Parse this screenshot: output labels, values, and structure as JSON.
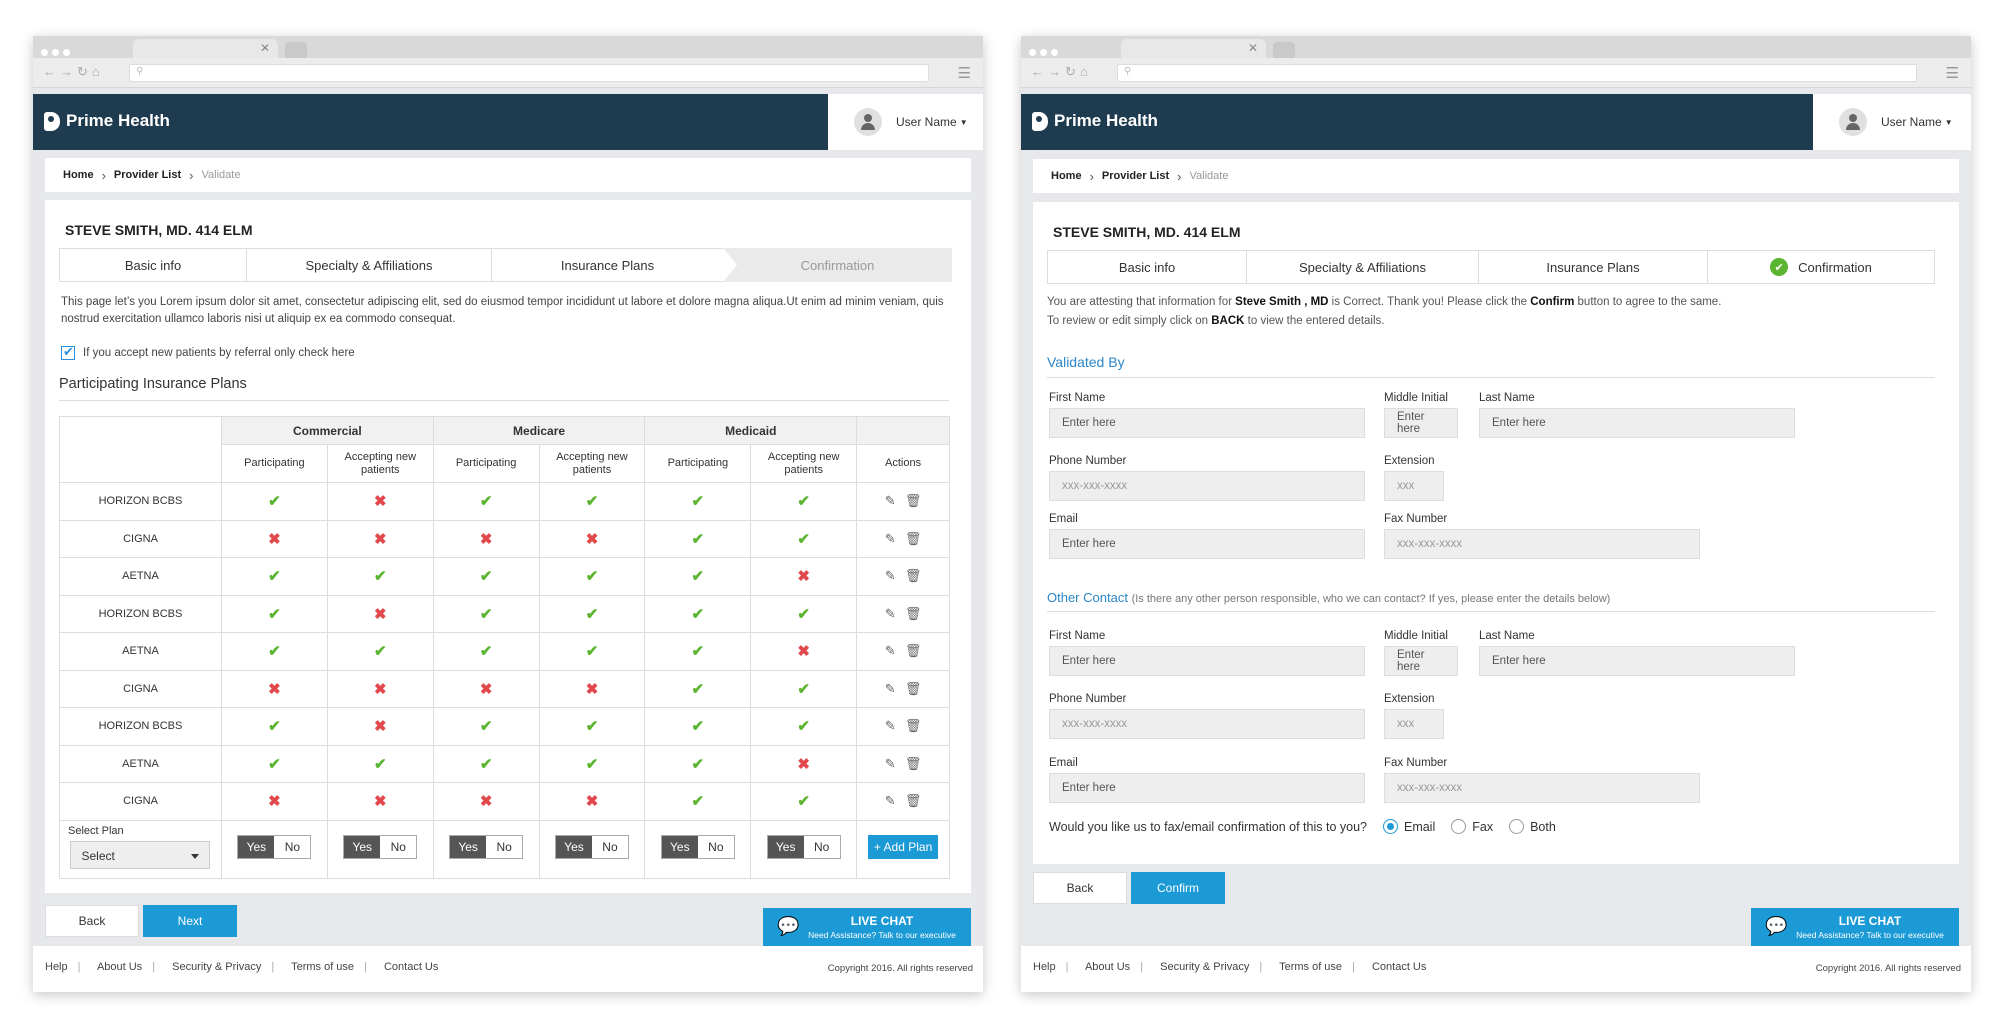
{
  "brand": "Prime Health",
  "user": "User Name",
  "breadcrumb": {
    "home": "Home",
    "provider": "Provider List",
    "current": "Validate"
  },
  "provider": "STEVE SMITH, MD. 414 ELM",
  "steps": [
    "Basic info",
    "Specialty & Affiliations",
    "Insurance Plans",
    "Confirmation"
  ],
  "screen1": {
    "description": "This page let’s you Lorem ipsum dolor sit amet, consectetur adipiscing elit, sed do eiusmod tempor incididunt ut labore et dolore magna aliqua.Ut enim ad minim veniam, quis nostrud exercitation ullamco laboris nisi ut aliquip ex ea commodo consequat.",
    "checkbox_label": "If you accept new patients by referral only check here",
    "section": "Participating Insurance Plans",
    "groups": [
      "Commercial",
      "Medicare",
      "Medicaid"
    ],
    "sub_participating": "Participating",
    "sub_accepting": "Accepting new patients",
    "actions": "Actions",
    "rows": [
      {
        "name": "HORIZON BCBS",
        "v": [
          1,
          0,
          1,
          1,
          1,
          1
        ]
      },
      {
        "name": "CIGNA",
        "v": [
          0,
          0,
          0,
          0,
          1,
          1
        ]
      },
      {
        "name": "AETNA",
        "v": [
          1,
          1,
          1,
          1,
          1,
          0
        ]
      },
      {
        "name": "HORIZON BCBS",
        "v": [
          1,
          0,
          1,
          1,
          1,
          1
        ]
      },
      {
        "name": "AETNA",
        "v": [
          1,
          1,
          1,
          1,
          1,
          0
        ]
      },
      {
        "name": "CIGNA",
        "v": [
          0,
          0,
          0,
          0,
          1,
          1
        ]
      },
      {
        "name": "HORIZON BCBS",
        "v": [
          1,
          0,
          1,
          1,
          1,
          1
        ]
      },
      {
        "name": "AETNA",
        "v": [
          1,
          1,
          1,
          1,
          1,
          0
        ]
      },
      {
        "name": "CIGNA",
        "v": [
          0,
          0,
          0,
          0,
          1,
          1
        ]
      }
    ],
    "select_plan_label": "Select Plan",
    "select_value": "Select",
    "yes": "Yes",
    "no": "No",
    "add_plan": "+ Add Plan",
    "back": "Back",
    "next": "Next"
  },
  "screen2": {
    "attest_pre": "You are attesting that information for ",
    "attest_name": "Steve Smith , MD",
    "attest_mid": " is Correct. Thank you! Please click the ",
    "attest_confirm": "Confirm",
    "attest_post": " button to agree to the same.",
    "review_pre": "To review or edit simply click on ",
    "review_back": "BACK",
    "review_post": " to view the entered details.",
    "validated_by": "Validated By",
    "other_contact": "Other Contact",
    "other_note": "(Is there any other person responsible, who we can contact? If yes, please enter the details below)",
    "labels": {
      "first": "First Name",
      "middle": "Middle Initial",
      "last": "Last Name",
      "phone": "Phone Number",
      "ext": "Extension",
      "email": "Email",
      "fax": "Fax Number"
    },
    "ph": {
      "enter": "Enter here",
      "phone": "xxx-xxx-xxxx",
      "ext": "xxx"
    },
    "question": "Would you like us to fax/email confirmation of this to you?",
    "options": [
      "Email",
      "Fax",
      "Both"
    ],
    "selected": "Email",
    "back": "Back",
    "confirm": "Confirm"
  },
  "chat": {
    "title": "LIVE CHAT",
    "sub": "Need Assistance? Talk to our executive"
  },
  "footer": {
    "links": [
      "Help",
      "About Us",
      "Security & Privacy",
      "Terms of use",
      "Contact Us"
    ],
    "copyright": "Copyright 2016. All rights reserved"
  }
}
